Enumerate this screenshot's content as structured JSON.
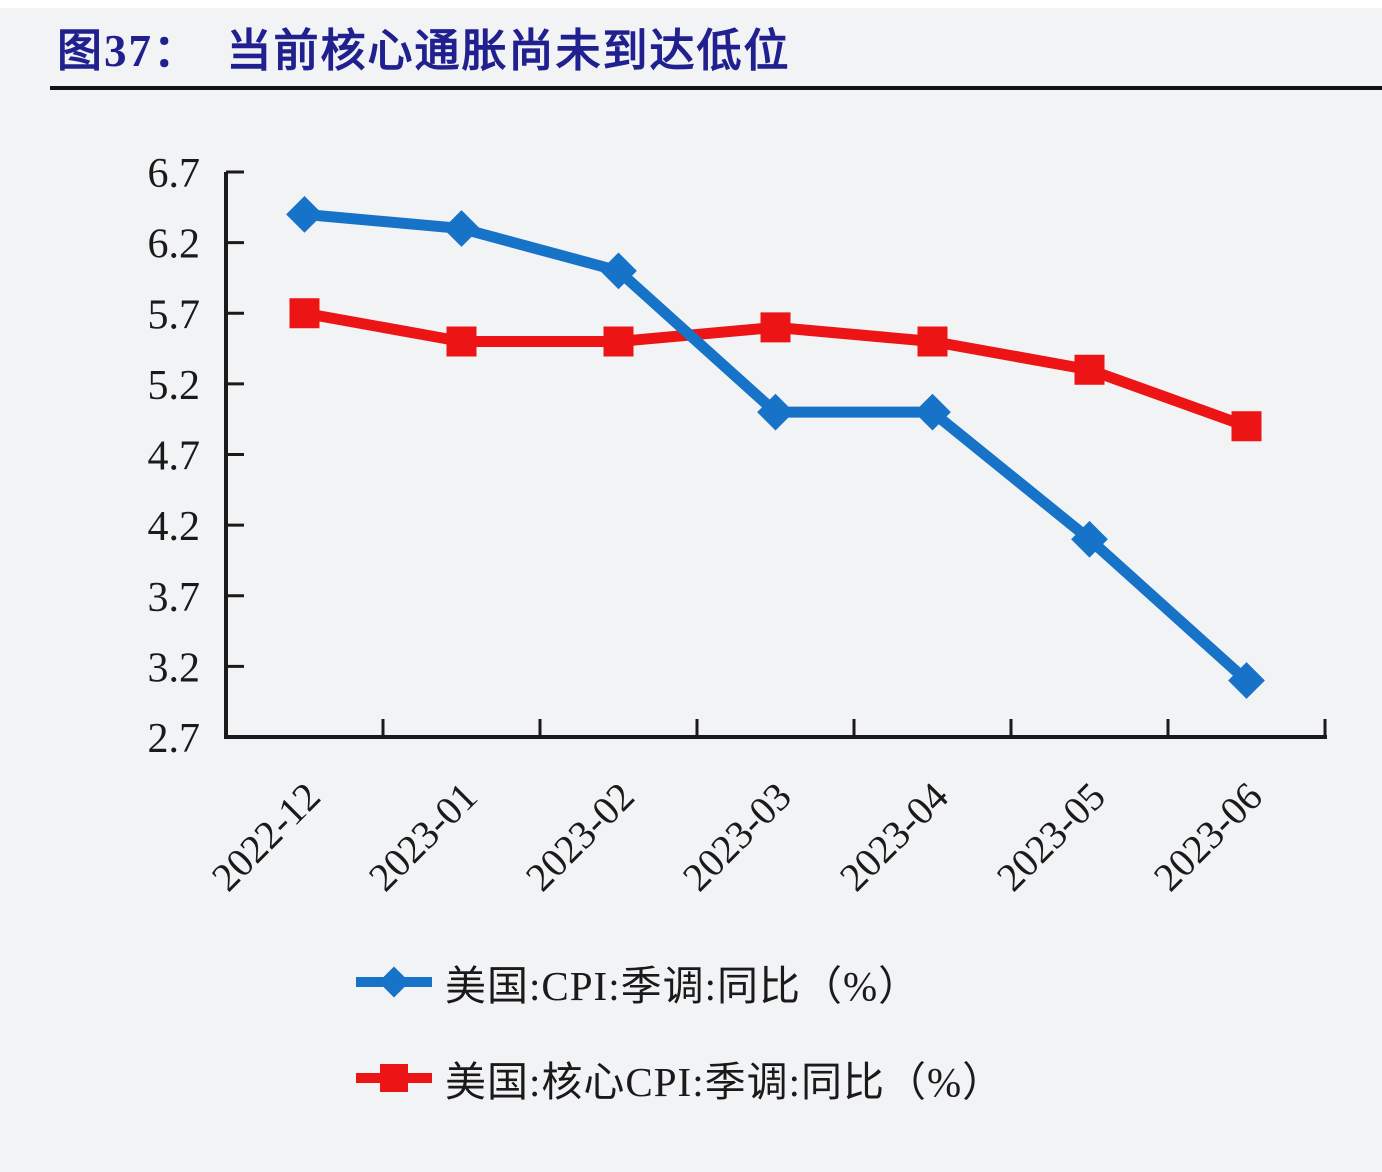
{
  "header": {
    "title": "图37：  当前核心通胀尚未到达低位"
  },
  "colors": {
    "title": "#20208E",
    "cpi_line": "#1673C7",
    "core_cpi_line": "#EC1414",
    "axis": "#1A1A1A",
    "text": "#1A1A1A",
    "background": "#F2F3F5"
  },
  "chart_data": {
    "type": "line",
    "title": "图37：当前核心通胀尚未到达低位",
    "categories": [
      "2022-12",
      "2023-01",
      "2023-02",
      "2023-03",
      "2023-04",
      "2023-05",
      "2023-06"
    ],
    "series": [
      {
        "name": "美国:CPI:季调:同比（%）",
        "marker": "diamond",
        "color_key": "cpi_line",
        "values": [
          6.4,
          6.3,
          6.0,
          5.0,
          5.0,
          4.1,
          3.1
        ]
      },
      {
        "name": "美国:核心CPI:季调:同比（%）",
        "marker": "square",
        "color_key": "core_cpi_line",
        "values": [
          5.7,
          5.5,
          5.5,
          5.6,
          5.5,
          5.3,
          4.9
        ]
      }
    ],
    "xlabel": "",
    "ylabel": "",
    "ylim": [
      2.7,
      6.7
    ],
    "ytick_step": 0.5,
    "yticks": [
      "2.7",
      "3.2",
      "3.7",
      "4.2",
      "4.7",
      "5.2",
      "5.7",
      "6.2",
      "6.7"
    ],
    "grid": false,
    "legend_position": "bottom",
    "x_label_rotation_deg": -45
  }
}
